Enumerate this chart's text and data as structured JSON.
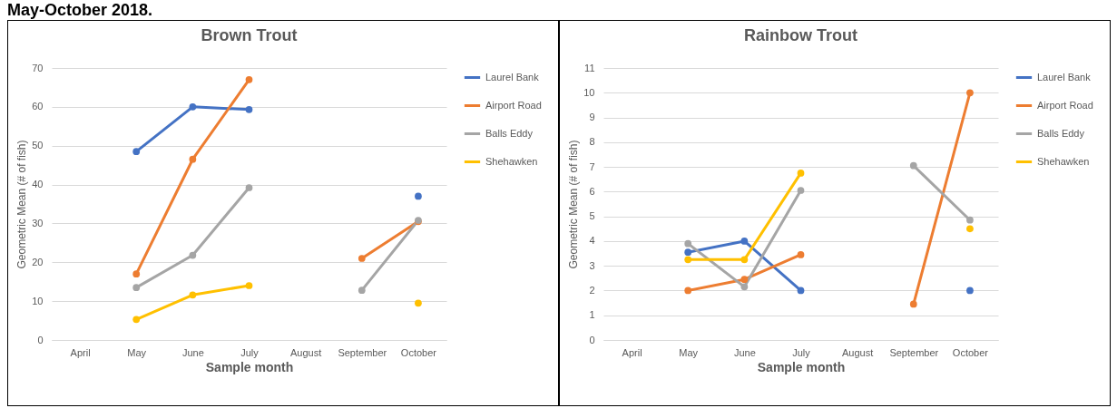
{
  "chart_data": [
    {
      "type": "line",
      "title": "Brown Trout",
      "xlabel": "Sample month",
      "ylabel": "Geometric Mean (# of fish)",
      "annotations": [
        "May-October 2018."
      ],
      "categories": [
        "April",
        "May",
        "June",
        "July",
        "August",
        "September",
        "October"
      ],
      "series": [
        {
          "name": "Laurel Bank",
          "color": "#4472c4",
          "values": [
            null,
            48.5,
            60,
            59.3,
            null,
            null,
            37
          ]
        },
        {
          "name": "Airport Road",
          "color": "#ed7d31",
          "values": [
            null,
            17,
            46.5,
            67,
            null,
            21,
            30.5
          ]
        },
        {
          "name": "Balls Eddy",
          "color": "#a5a5a5",
          "values": [
            null,
            13.5,
            21.8,
            39.2,
            null,
            12.8,
            30.8
          ]
        },
        {
          "name": "Shehawken",
          "color": "#ffc000",
          "values": [
            null,
            5.3,
            11.6,
            14,
            null,
            null,
            9.5
          ]
        }
      ],
      "ylim": [
        0,
        70
      ],
      "yticks": [
        0,
        10,
        20,
        30,
        40,
        50,
        60,
        70
      ],
      "grid": "y",
      "legend": "top right",
      "marker": "circle"
    },
    {
      "type": "line",
      "title": "Rainbow Trout",
      "xlabel": "Sample month",
      "ylabel": "Geometric Mean (# of fish)",
      "categories": [
        "April",
        "May",
        "June",
        "July",
        "August",
        "September",
        "October"
      ],
      "series": [
        {
          "name": "Laurel Bank",
          "color": "#4472c4",
          "values": [
            null,
            3.55,
            4.0,
            2.0,
            null,
            null,
            2.0
          ]
        },
        {
          "name": "Airport Road",
          "color": "#ed7d31",
          "values": [
            null,
            2.0,
            2.45,
            3.45,
            null,
            1.45,
            10
          ]
        },
        {
          "name": "Balls Eddy",
          "color": "#a5a5a5",
          "values": [
            null,
            3.9,
            2.15,
            6.05,
            null,
            7.05,
            4.85
          ]
        },
        {
          "name": "Shehawken",
          "color": "#ffc000",
          "values": [
            null,
            3.25,
            3.25,
            6.75,
            null,
            null,
            4.5
          ]
        }
      ],
      "ylim": [
        0,
        11
      ],
      "yticks": [
        0,
        1,
        2,
        3,
        4,
        5,
        6,
        7,
        8,
        9,
        10,
        11
      ],
      "grid": "y",
      "legend": "top right",
      "marker": "circle"
    }
  ]
}
